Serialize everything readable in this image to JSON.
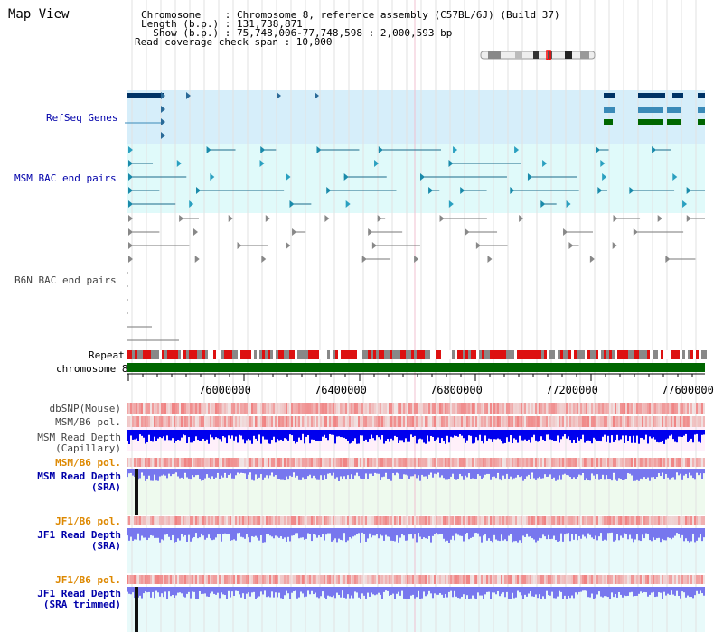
{
  "header": {
    "title": "Map View",
    "chromosome_line": "Chromosome    : Chromosome 8, reference assembly (C57BL/6J) (Build 37)",
    "length_line": "Length (b.p.) : 131,738,871",
    "show_line": "  Show (b.p.) : 75,748,006-77,748,598 : 2,000,593 bp",
    "coverage_line": "Read coverage check span : 10,000"
  },
  "tracks": {
    "refseq": "RefSeq Genes",
    "msm_bac": "MSM BAC end pairs",
    "b6n_bac": "B6N BAC end pairs",
    "repeat": "Repeat",
    "chromosome": "chromosome 8",
    "dbsnp": "dbSNP(Mouse)",
    "msm_b6_pol_1": "MSM/B6 pol.",
    "msm_read_depth_cap_1": "MSM Read Depth",
    "msm_read_depth_cap_2": "(Capillary)",
    "msm_b6_pol_2": "MSM/B6 pol.",
    "msm_read_depth_sra_1": "MSM Read Depth",
    "msm_read_depth_sra_2": "(SRA)",
    "jf1_b6_pol_1": "JF1/B6 pol.",
    "jf1_read_depth_sra_1": "JF1 Read Depth",
    "jf1_read_depth_sra_2": "(SRA)",
    "jf1_b6_pol_2": "JF1/B6 pol.",
    "jf1_read_depth_trim_1": "JF1 Read Depth",
    "jf1_read_depth_trim_2": "(SRA trimmed)"
  },
  "ruler": {
    "ticks": [
      "76000000",
      "76400000",
      "76800000",
      "77200000",
      "77600000"
    ]
  },
  "colors": {
    "refseq_bg": "#d6eefa",
    "msm_bac_bg": "#e0fafa",
    "chromosome_bar": "#006600",
    "snp": "#f08080",
    "depth_blue": "#0000ee",
    "depth_light": "#7777ee",
    "label_blue": "#0000aa",
    "label_orange": "#dd8800"
  }
}
